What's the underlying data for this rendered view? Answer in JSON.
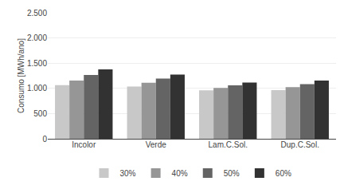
{
  "chart_data": {
    "type": "bar",
    "categories": [
      "Incolor",
      "Verde",
      "Lam.C.Sol.",
      "Dup.C.Sol."
    ],
    "series": [
      {
        "name": "30%",
        "color": "#c8c8c8",
        "values": [
          1065,
          1035,
          960,
          965
        ]
      },
      {
        "name": "40%",
        "color": "#969696",
        "values": [
          1155,
          1110,
          1010,
          1025
        ]
      },
      {
        "name": "50%",
        "color": "#646464",
        "values": [
          1265,
          1195,
          1060,
          1085
        ]
      },
      {
        "name": "60%",
        "color": "#323232",
        "values": [
          1375,
          1275,
          1115,
          1155
        ]
      }
    ],
    "ylabel": "Consumo [MWh/ano]",
    "ylim": [
      0,
      2500
    ],
    "yticks": [
      0,
      500,
      {
        "value": 1000,
        "label": "1.000"
      },
      {
        "value": 1500,
        "label": "1.500"
      },
      {
        "value": 2000,
        "label": "2.000"
      },
      {
        "value": 2500,
        "label": "2.500"
      }
    ],
    "grid": true,
    "legend": "bottom"
  }
}
